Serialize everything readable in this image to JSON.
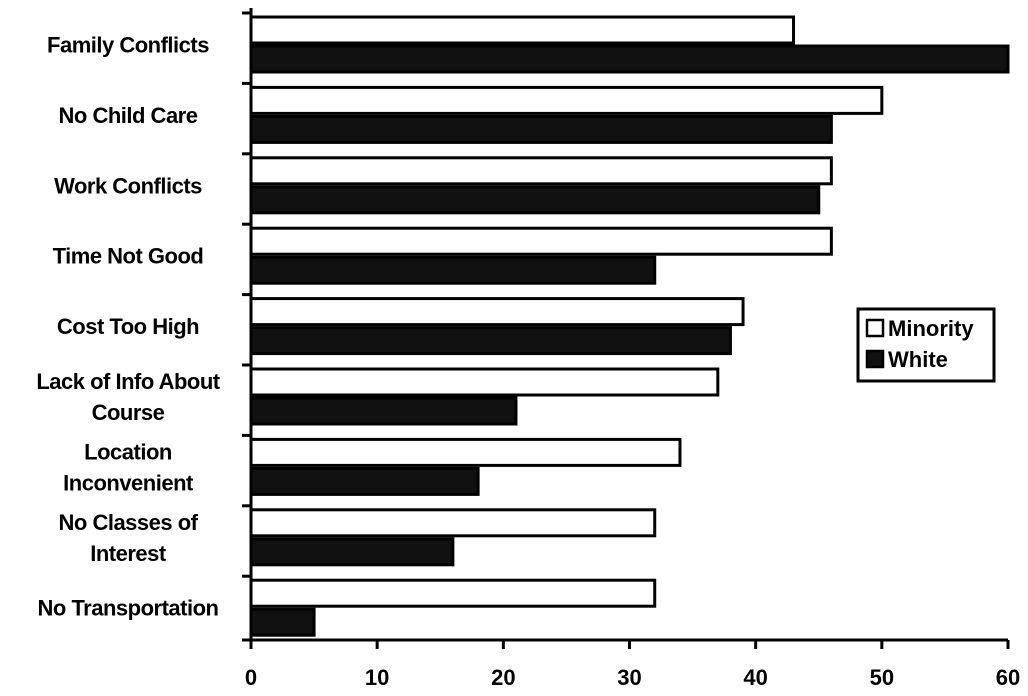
{
  "chart_data": {
    "type": "bar",
    "orientation": "horizontal",
    "categories": [
      [
        "Family Conflicts"
      ],
      [
        "No Child Care"
      ],
      [
        "Work Conflicts"
      ],
      [
        "Time Not Good"
      ],
      [
        "Cost Too High"
      ],
      [
        "Lack of Info About",
        "Course"
      ],
      [
        "Location",
        "Inconvenient"
      ],
      [
        "No Classes of",
        "Interest"
      ],
      [
        "No Transportation"
      ]
    ],
    "series": [
      {
        "name": "Minority",
        "color": "#ffffff",
        "values": [
          43,
          50,
          46,
          46,
          39,
          37,
          34,
          32,
          32
        ]
      },
      {
        "name": "White",
        "color": "#111111",
        "values": [
          60,
          46,
          45,
          32,
          38,
          21,
          18,
          16,
          5
        ]
      }
    ],
    "xlim": [
      0,
      60
    ],
    "xticks": [
      0,
      10,
      20,
      30,
      40,
      50,
      60
    ],
    "grid": false,
    "legend": "right",
    "title": "",
    "xlabel": "",
    "ylabel": ""
  }
}
